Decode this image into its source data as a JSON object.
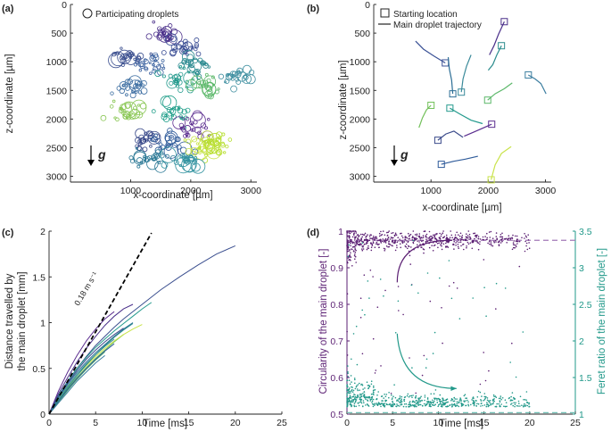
{
  "chart_data": [
    {
      "panel": "(a)",
      "type": "scatter",
      "title": "",
      "xlabel": "x-coordinate [µm]",
      "ylabel": "z-coordinate [µm]",
      "xlim": [
        0,
        3100
      ],
      "ylim": [
        0,
        3100
      ],
      "y_inverted": true,
      "xticks": [
        1000,
        2000,
        3000
      ],
      "yticks": [
        0,
        500,
        1000,
        1500,
        2000,
        2500,
        3000
      ],
      "legend": [
        {
          "label": "Participating droplets",
          "marker": "open-circle"
        }
      ],
      "legend_position": "top",
      "annotation": "g",
      "clusters": [
        {
          "center": [
            950,
            930
          ],
          "color": "#3b4f8f"
        },
        {
          "center": [
            1350,
            1050
          ],
          "color": "#3d63a0"
        },
        {
          "center": [
            1050,
            1450
          ],
          "color": "#3a6ca0"
        },
        {
          "center": [
            1550,
            500
          ],
          "color": "#4a2f8a"
        },
        {
          "center": [
            1900,
            750
          ],
          "color": "#3a4d94"
        },
        {
          "center": [
            2050,
            1050
          ],
          "color": "#2c8a90"
        },
        {
          "center": [
            1800,
            1280
          ],
          "color": "#249a8d"
        },
        {
          "center": [
            2300,
            1420
          ],
          "color": "#5cb86a"
        },
        {
          "center": [
            2800,
            1300
          ],
          "color": "#3f8fa0"
        },
        {
          "center": [
            950,
            1850
          ],
          "color": "#86c54f"
        },
        {
          "center": [
            1700,
            1900
          ],
          "color": "#1f9e89"
        },
        {
          "center": [
            2000,
            2150
          ],
          "color": "#5b2d8f"
        },
        {
          "center": [
            1250,
            2350
          ],
          "color": "#3a4a8a"
        },
        {
          "center": [
            1650,
            2450
          ],
          "color": "#2f5b9a"
        },
        {
          "center": [
            2150,
            2500
          ],
          "color": "#c9e34a"
        },
        {
          "center": [
            2450,
            2450
          ],
          "color": "#b5de2b"
        },
        {
          "center": [
            1300,
            2700
          ],
          "color": "#2a7895"
        },
        {
          "center": [
            1900,
            2700
          ],
          "color": "#3393a0"
        }
      ]
    },
    {
      "panel": "(b)",
      "type": "line",
      "title": "",
      "xlabel": "x-coordinate [µm]",
      "ylabel": "z-coordinate [µm]",
      "xlim": [
        0,
        3100
      ],
      "ylim": [
        0,
        3100
      ],
      "y_inverted": true,
      "xticks": [
        1000,
        2000,
        3000
      ],
      "yticks": [
        0,
        500,
        1000,
        1500,
        2000,
        2500,
        3000
      ],
      "legend": [
        {
          "label": "Starting location",
          "marker": "open-square"
        },
        {
          "label": "Main droplet trajectory",
          "marker": "line"
        }
      ],
      "legend_position": "top",
      "annotation": "g",
      "series": [
        {
          "color": "#4a2f8a",
          "x": [
            2280,
            2180,
            2100,
            2020
          ],
          "y": [
            300,
            520,
            720,
            880
          ]
        },
        {
          "color": "#2b8c8d",
          "x": [
            2230,
            2150,
            2080,
            2000
          ],
          "y": [
            720,
            880,
            1050,
            1150
          ]
        },
        {
          "color": "#3b5296",
          "x": [
            1250,
            1050,
            870,
            730
          ],
          "y": [
            1020,
            900,
            780,
            640
          ]
        },
        {
          "color": "#2c6e95",
          "x": [
            1380,
            1360,
            1320,
            1300
          ],
          "y": [
            1560,
            1320,
            1120,
            920
          ]
        },
        {
          "color": "#3a8a9a",
          "x": [
            1530,
            1560,
            1620,
            1700
          ],
          "y": [
            1530,
            1300,
            1080,
            880
          ]
        },
        {
          "color": "#3c7ea0",
          "x": [
            2700,
            2820,
            2920,
            3010
          ],
          "y": [
            1230,
            1300,
            1380,
            1560
          ]
        },
        {
          "color": "#5cb86a",
          "x": [
            1990,
            2120,
            2280,
            2420
          ],
          "y": [
            1670,
            1560,
            1470,
            1370
          ]
        },
        {
          "color": "#72c05a",
          "x": [
            1000,
            920,
            850,
            790
          ],
          "y": [
            1760,
            1840,
            1980,
            2150
          ]
        },
        {
          "color": "#249a8d",
          "x": [
            1330,
            1500,
            1700,
            1900
          ],
          "y": [
            1810,
            1910,
            2020,
            2080
          ]
        },
        {
          "color": "#5b2d8f",
          "x": [
            2060,
            1900,
            1740,
            1580
          ],
          "y": [
            2090,
            2160,
            2230,
            2300
          ]
        },
        {
          "color": "#3a4a8a",
          "x": [
            1120,
            1260,
            1400,
            1560
          ],
          "y": [
            2370,
            2260,
            2210,
            2320
          ]
        },
        {
          "color": "#c9e34a",
          "x": [
            2050,
            2120,
            2230,
            2400
          ],
          "y": [
            3060,
            2800,
            2600,
            2480
          ]
        },
        {
          "color": "#2f5b9a",
          "x": [
            1180,
            1380,
            1600,
            1820
          ],
          "y": [
            2790,
            2740,
            2700,
            2650
          ]
        }
      ]
    },
    {
      "panel": "(c)",
      "type": "line",
      "title": "",
      "xlabel": "Time [ms]",
      "ylabel": "Distance travelled by the main droplet [mm]",
      "xlim": [
        0,
        25
      ],
      "ylim": [
        0,
        2
      ],
      "xticks": [
        0,
        5,
        10,
        15,
        20,
        25
      ],
      "yticks": [
        0,
        0.5,
        1,
        1.5,
        2
      ],
      "reference_line": {
        "slope": 0.18,
        "x": [
          0,
          11
        ],
        "y": [
          0,
          1.98
        ],
        "style": "dashed",
        "color": "#000000"
      },
      "annotation": "0.18 m s⁻¹",
      "series": [
        {
          "color": "#3b4f8f",
          "x": [
            0,
            1,
            2,
            3,
            4,
            5,
            6,
            7,
            8,
            10,
            12,
            14,
            16,
            18,
            20
          ],
          "y": [
            0,
            0.2,
            0.36,
            0.5,
            0.63,
            0.75,
            0.85,
            0.95,
            1.04,
            1.2,
            1.36,
            1.5,
            1.63,
            1.75,
            1.84
          ]
        },
        {
          "color": "#4a2f8a",
          "x": [
            0,
            1,
            2,
            3,
            4,
            5,
            6,
            7,
            8,
            9
          ],
          "y": [
            0,
            0.22,
            0.4,
            0.57,
            0.72,
            0.85,
            0.97,
            1.07,
            1.15,
            1.2
          ]
        },
        {
          "color": "#5b2d8f",
          "x": [
            0,
            1,
            2,
            3,
            4,
            5,
            6,
            7
          ],
          "y": [
            0,
            0.25,
            0.46,
            0.64,
            0.8,
            0.93,
            1.04,
            1.12
          ]
        },
        {
          "color": "#249a8d",
          "x": [
            0,
            1,
            2,
            3,
            4,
            5,
            6,
            7,
            8,
            9,
            10,
            11
          ],
          "y": [
            0,
            0.2,
            0.36,
            0.5,
            0.62,
            0.73,
            0.82,
            0.91,
            0.99,
            1.07,
            1.15,
            1.22
          ]
        },
        {
          "color": "#2c6e95",
          "x": [
            0,
            1,
            2,
            3,
            4,
            5,
            6,
            7,
            8,
            9
          ],
          "y": [
            0,
            0.18,
            0.33,
            0.46,
            0.57,
            0.67,
            0.76,
            0.85,
            0.93,
            1.0
          ]
        },
        {
          "color": "#72c05a",
          "x": [
            0,
            1,
            2,
            3,
            4,
            5,
            6,
            7,
            8
          ],
          "y": [
            0,
            0.15,
            0.28,
            0.4,
            0.51,
            0.61,
            0.7,
            0.79,
            0.87
          ]
        },
        {
          "color": "#c9e34a",
          "x": [
            0,
            1,
            2,
            3,
            4,
            5,
            6,
            7,
            8,
            9,
            10
          ],
          "y": [
            0,
            0.16,
            0.3,
            0.42,
            0.53,
            0.63,
            0.72,
            0.8,
            0.87,
            0.93,
            0.98
          ]
        },
        {
          "color": "#3a8a9a",
          "x": [
            0,
            1,
            2,
            3,
            4,
            5,
            6,
            7
          ],
          "y": [
            0,
            0.17,
            0.31,
            0.44,
            0.55,
            0.65,
            0.74,
            0.82
          ]
        },
        {
          "color": "#5cb86a",
          "x": [
            0,
            1,
            2,
            3,
            4,
            5,
            6
          ],
          "y": [
            0,
            0.13,
            0.26,
            0.38,
            0.49,
            0.59,
            0.68
          ]
        },
        {
          "color": "#3a4a8a",
          "x": [
            0,
            1,
            2,
            3,
            4,
            5,
            6,
            7,
            8
          ],
          "y": [
            0,
            0.19,
            0.34,
            0.48,
            0.6,
            0.7,
            0.79,
            0.87,
            0.94
          ]
        },
        {
          "color": "#2f5b9a",
          "x": [
            0,
            1,
            2,
            3,
            4,
            5,
            6,
            7
          ],
          "y": [
            0,
            0.14,
            0.27,
            0.39,
            0.5,
            0.6,
            0.69,
            0.77
          ]
        },
        {
          "color": "#2b8c8d",
          "x": [
            0,
            1,
            2,
            3,
            4,
            5,
            6,
            7,
            8,
            9
          ],
          "y": [
            0,
            0.15,
            0.29,
            0.42,
            0.54,
            0.65,
            0.75,
            0.84,
            0.92,
            0.99
          ]
        },
        {
          "color": "#3c7ea0",
          "x": [
            0,
            1,
            2,
            3,
            4,
            5,
            6
          ],
          "y": [
            0,
            0.12,
            0.24,
            0.36,
            0.46,
            0.56,
            0.64
          ]
        }
      ]
    },
    {
      "panel": "(d)",
      "type": "scatter",
      "title": "",
      "xlabel": "Time [ms]",
      "ylabel": "Circularity of the main droplet [-]",
      "y2label": "Feret ratio of the main droplet [-]",
      "xlim": [
        0,
        25
      ],
      "ylim": [
        0.5,
        1
      ],
      "y2lim": [
        1,
        3.5
      ],
      "xticks": [
        0,
        5,
        10,
        15,
        20,
        25
      ],
      "yticks": [
        0.5,
        0.6,
        0.7,
        0.8,
        0.9,
        1
      ],
      "y2ticks": [
        1,
        1.5,
        2,
        2.5,
        3,
        3.5
      ],
      "series": [
        {
          "name": "Circularity",
          "axis": "left",
          "color": "#5b1f73",
          "band_center": 0.975,
          "band_spread": 0.012,
          "x_range": [
            0,
            20
          ]
        },
        {
          "name": "Feret ratio",
          "axis": "right",
          "color": "#22998a",
          "band_center": 1.1,
          "band_spread": 0.08,
          "x_range": [
            0,
            20
          ]
        }
      ],
      "reference_lines": [
        {
          "axis": "left",
          "y": 0.975,
          "color": "#a277b8",
          "style": "dashed"
        },
        {
          "axis": "right",
          "y": 1.02,
          "color": "#70bfb4",
          "style": "dashed"
        }
      ],
      "arrows": [
        {
          "axis": "left",
          "color": "#5b1f73",
          "from": [
            5.5,
            0.86
          ],
          "to": [
            11.5,
            0.975
          ]
        },
        {
          "axis": "left",
          "color": "#22998a",
          "from": [
            5.5,
            0.72
          ],
          "to": [
            12,
            0.57
          ]
        }
      ]
    }
  ]
}
